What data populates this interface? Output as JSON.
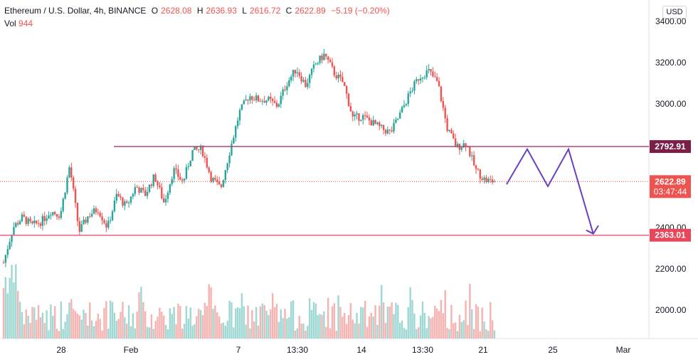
{
  "header": {
    "symbol": "Ethereum / U.S. Dollar, 4h, BINANCE",
    "o_label": "O",
    "o_value": "2628.08",
    "h_label": "H",
    "h_value": "2636.93",
    "l_label": "L",
    "l_value": "2616.72",
    "c_label": "C",
    "c_value": "2622.89",
    "change": "−5.19 (−0.20%)",
    "vol_label": "Vol",
    "vol_value": "944"
  },
  "currency_button": "USD",
  "colors": {
    "up": "#26a69a",
    "down": "#ef5350",
    "up_volume": "#9fd8d3",
    "down_volume": "#f5b3b1",
    "resistance": "#b0457a",
    "support": "#f0607a",
    "projection": "#6a3fc4"
  },
  "chart_data": {
    "type": "candlestick",
    "y_axis": {
      "ticks": [
        "3400.00",
        "3200.00",
        "3000.00",
        "2400.00",
        "2200.00",
        "2000.00"
      ],
      "ylim": [
        1850,
        3430
      ]
    },
    "x_axis": {
      "ticks": [
        "28",
        "Feb",
        "7",
        "13:30",
        "14",
        "13:30",
        "21",
        "25",
        "Mar"
      ]
    },
    "last_price": {
      "value": 2622.89,
      "label": "2622.89",
      "countdown": "03:47:44"
    },
    "resistance": {
      "value": 2792.91,
      "label": "2792.91"
    },
    "support": {
      "value": 2363.01,
      "label": "2363.01"
    },
    "close_path": [
      2230,
      2400,
      2450,
      2410,
      2430,
      2480,
      2460,
      2700,
      2380,
      2460,
      2490,
      2400,
      2560,
      2500,
      2600,
      2560,
      2650,
      2520,
      2680,
      2620,
      2770,
      2780,
      2640,
      2590,
      2780,
      2960,
      3040,
      3020,
      3020,
      2990,
      3100,
      3170,
      3090,
      3190,
      3240,
      3150,
      3100,
      2930,
      2940,
      2910,
      2880,
      2860,
      2950,
      3050,
      3130,
      3160,
      3100,
      2880,
      2790,
      2810,
      2680,
      2630,
      2623
    ],
    "projection": [
      [
        2610,
        0
      ],
      [
        2780,
        1
      ],
      [
        2600,
        2
      ],
      [
        2780,
        3
      ],
      [
        2370,
        4.2
      ],
      [
        2410,
        4.45
      ]
    ]
  }
}
